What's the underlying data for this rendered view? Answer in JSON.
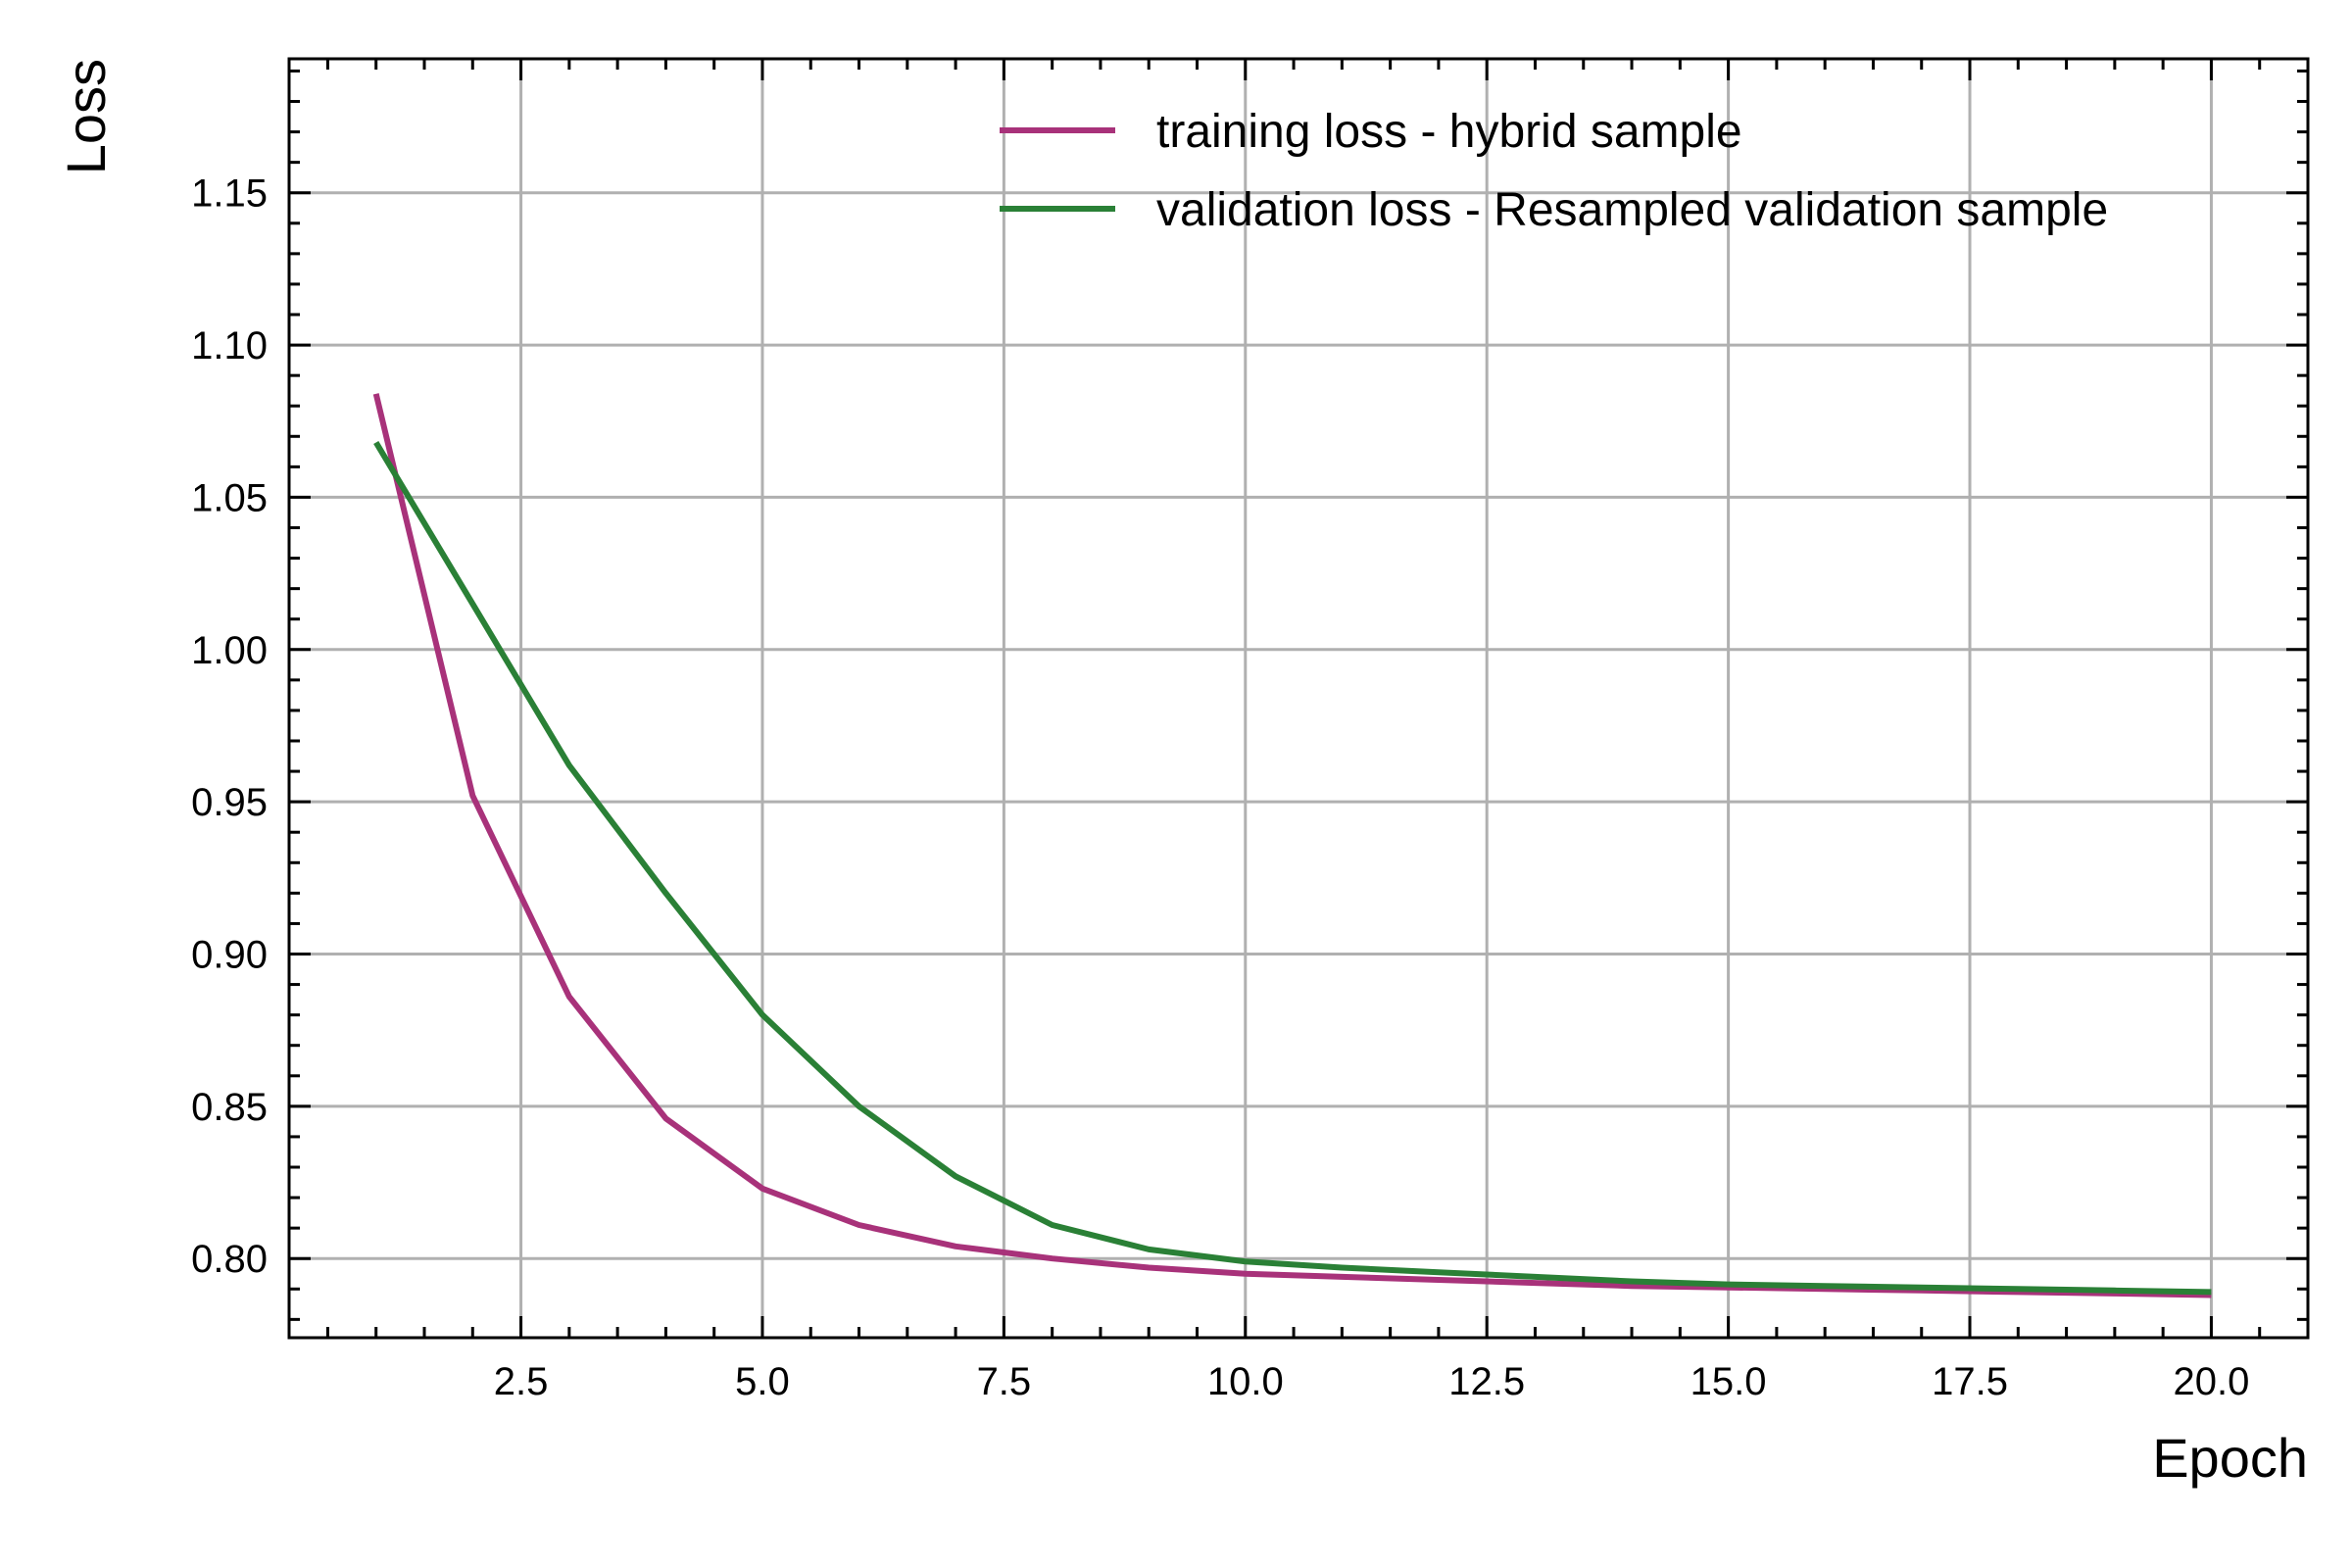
{
  "chart_data": {
    "type": "line",
    "xlabel": "Epoch",
    "ylabel": "Loss",
    "xlim": [
      0.1,
      21.0
    ],
    "ylim": [
      0.774,
      1.194
    ],
    "x_ticks": [
      2.5,
      5.0,
      7.5,
      10.0,
      12.5,
      15.0,
      17.5,
      20.0
    ],
    "y_ticks": [
      0.8,
      0.85,
      0.9,
      0.95,
      1.0,
      1.05,
      1.1,
      1.15
    ],
    "grid": true,
    "legend_position": "top-right",
    "series": [
      {
        "name": "training loss - hybrid sample",
        "color": "#a8327a",
        "x": [
          1,
          2,
          3,
          4,
          5,
          6,
          7,
          8,
          9,
          10,
          11,
          12,
          13,
          14,
          15,
          16,
          17,
          18,
          19,
          20
        ],
        "y": [
          1.084,
          0.952,
          0.886,
          0.846,
          0.823,
          0.811,
          0.804,
          0.8,
          0.797,
          0.795,
          0.794,
          0.793,
          0.792,
          0.791,
          0.7905,
          0.79,
          0.7895,
          0.789,
          0.7885,
          0.788
        ]
      },
      {
        "name": "validation loss - Resampled validation sample",
        "color": "#2a8036",
        "x": [
          1,
          2,
          3,
          4,
          5,
          6,
          7,
          8,
          9,
          10,
          11,
          12,
          13,
          14,
          15,
          16,
          17,
          18,
          19,
          20
        ],
        "y": [
          1.068,
          1.015,
          0.962,
          0.92,
          0.88,
          0.85,
          0.827,
          0.811,
          0.803,
          0.799,
          0.797,
          0.7955,
          0.794,
          0.7925,
          0.7915,
          0.791,
          0.7905,
          0.79,
          0.7895,
          0.789
        ]
      }
    ]
  }
}
